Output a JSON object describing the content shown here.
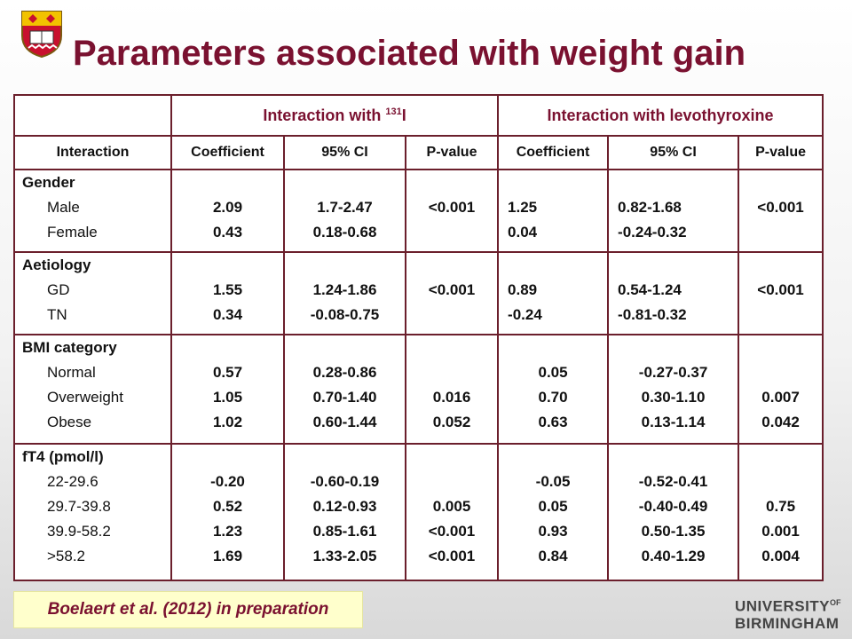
{
  "title": "Parameters associated with weight gain",
  "table": {
    "group_headers": {
      "radioiodine_prefix": "Interaction with ",
      "radioiodine_sup": "131",
      "radioiodine_suffix": "I",
      "levothyroxine": "Interaction with levothyroxine"
    },
    "columns": [
      "Interaction",
      "Coefficient",
      "95% CI",
      "P-value",
      "Coefficient",
      "95% CI",
      "P-value"
    ],
    "blocks": [
      {
        "label": "Gender",
        "rows": [
          {
            "name": "Male",
            "coef1": "2.09",
            "ci1": "1.7-2.47",
            "coef2": "1.25",
            "ci2": "0.82-1.68"
          },
          {
            "name": "Female",
            "coef1": "0.43",
            "ci1": "0.18-0.68",
            "coef2": "0.04",
            "ci2": "-0.24-0.32"
          }
        ],
        "pvals1": [
          "<0.001"
        ],
        "pvals2": [
          "<0.001"
        ]
      },
      {
        "label": "Aetiology",
        "rows": [
          {
            "name": "GD",
            "coef1": "1.55",
            "ci1": "1.24-1.86",
            "coef2": "0.89",
            "ci2": "0.54-1.24"
          },
          {
            "name": "TN",
            "coef1": "0.34",
            "ci1": "-0.08-0.75",
            "coef2": "-0.24",
            "ci2": "-0.81-0.32"
          }
        ],
        "pvals1": [
          "<0.001"
        ],
        "pvals2": [
          "<0.001"
        ]
      },
      {
        "label": "BMI category",
        "rows": [
          {
            "name": "Normal",
            "coef1": "0.57",
            "ci1": "0.28-0.86",
            "coef2": "0.05",
            "ci2": "-0.27-0.37"
          },
          {
            "name": "Overweight",
            "coef1": "1.05",
            "ci1": "0.70-1.40",
            "coef2": "0.70",
            "ci2": "0.30-1.10"
          },
          {
            "name": "Obese",
            "coef1": "1.02",
            "ci1": "0.60-1.44",
            "coef2": "0.63",
            "ci2": "0.13-1.14"
          }
        ],
        "pvals1": [
          "0.016",
          "0.052"
        ],
        "pvals2": [
          "0.007",
          "0.042"
        ]
      },
      {
        "label": "fT4 (pmol/l)",
        "rows": [
          {
            "name": "22-29.6",
            "coef1": "-0.20",
            "ci1": "-0.60-0.19",
            "coef2": "-0.05",
            "ci2": "-0.52-0.41"
          },
          {
            "name": "29.7-39.8",
            "coef1": "0.52",
            "ci1": "0.12-0.93",
            "coef2": "0.05",
            "ci2": "-0.40-0.49"
          },
          {
            "name": "39.9-58.2",
            "coef1": "1.23",
            "ci1": "0.85-1.61",
            "coef2": "0.93",
            "ci2": "0.50-1.35"
          },
          {
            "name": ">58.2",
            "coef1": "1.69",
            "ci1": "1.33-2.05",
            "coef2": "0.84",
            "ci2": "0.40-1.29"
          }
        ],
        "pvals1": [
          "0.005",
          "<0.001",
          "<0.001"
        ],
        "pvals2": [
          "0.75",
          "0.001",
          "0.004"
        ]
      }
    ]
  },
  "citation": "Boelaert et al. (2012) in preparation",
  "logo": {
    "line1_main": "UNIVERSITY",
    "line1_of": "OF",
    "line2": "BIRMINGHAM"
  },
  "colors": {
    "title": "#7a1130",
    "table_border": "#6b1f2c",
    "citation_bg": "#ffffcc"
  }
}
